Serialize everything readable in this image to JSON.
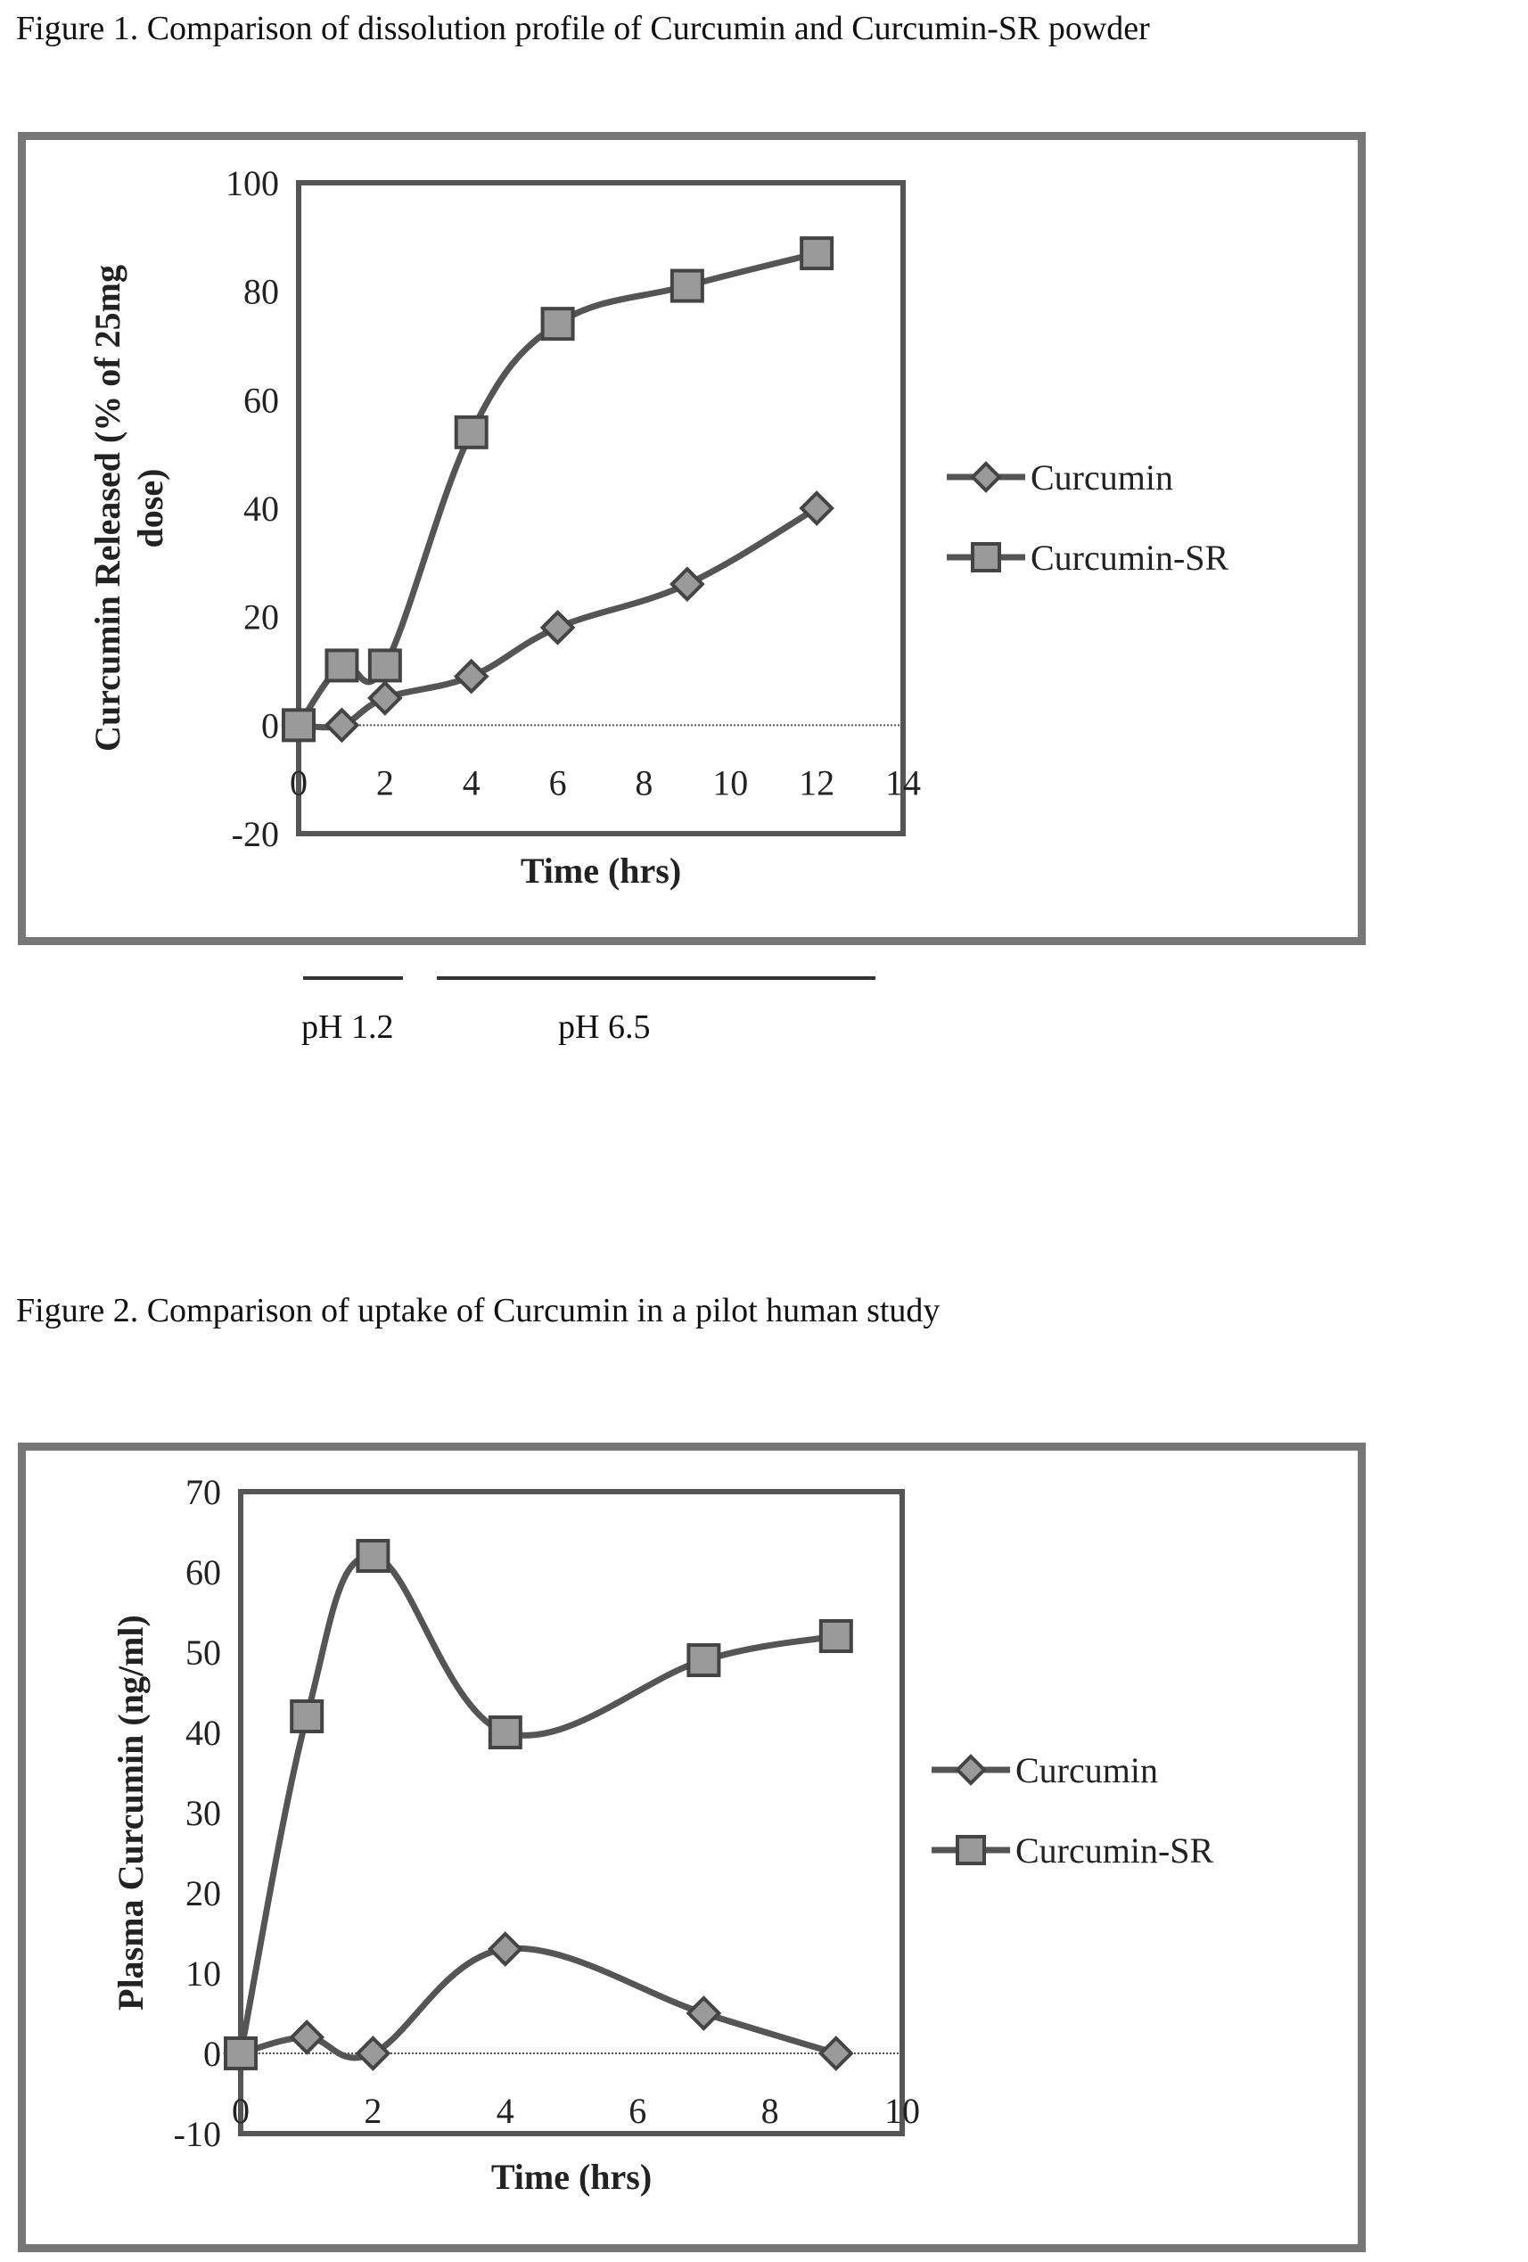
{
  "figures": [
    {
      "caption": "Figure 1. Comparison of dissolution profile of Curcumin and Curcumin-SR powder",
      "ph_labels": [
        "pH 1.2",
        "pH 6.5"
      ]
    },
    {
      "caption": "Figure 2.  Comparison of uptake of Curcumin in a pilot human study"
    }
  ],
  "chart_data": [
    {
      "type": "line",
      "title": "",
      "xlabel": "Time (hrs)",
      "ylabel": "Curcumin Released (% of 25mg dose)",
      "xlim": [
        0,
        14
      ],
      "ylim": [
        -20,
        100
      ],
      "xticks": [
        0,
        2,
        4,
        6,
        8,
        10,
        12,
        14
      ],
      "yticks": [
        -20,
        0,
        20,
        40,
        60,
        80,
        100
      ],
      "legend_position": "right",
      "series": [
        {
          "name": "Curcumin",
          "marker": "diamond",
          "x": [
            0,
            1,
            2,
            4,
            6,
            9,
            12
          ],
          "y": [
            0,
            0,
            5,
            9,
            18,
            26,
            40
          ]
        },
        {
          "name": "Curcumin-SR",
          "marker": "square",
          "x": [
            0,
            1,
            2,
            4,
            6,
            9,
            12
          ],
          "y": [
            0,
            11,
            11,
            54,
            74,
            81,
            87
          ]
        }
      ]
    },
    {
      "type": "line",
      "title": "",
      "xlabel": "Time (hrs)",
      "ylabel": "Plasma Curcumin (ng/ml)",
      "xlim": [
        0,
        10
      ],
      "ylim": [
        -10,
        70
      ],
      "xticks": [
        0,
        2,
        4,
        6,
        8,
        10
      ],
      "yticks": [
        -10,
        0,
        10,
        20,
        30,
        40,
        50,
        60,
        70
      ],
      "legend_position": "right",
      "series": [
        {
          "name": "Curcumin",
          "marker": "diamond",
          "x": [
            0,
            1,
            2,
            4,
            7,
            9
          ],
          "y": [
            0,
            2,
            0,
            13,
            5,
            0
          ]
        },
        {
          "name": "Curcumin-SR",
          "marker": "square",
          "x": [
            0,
            1,
            2,
            4,
            7,
            9
          ],
          "y": [
            0,
            42,
            62,
            40,
            49,
            52
          ]
        }
      ]
    }
  ],
  "colors": {
    "line": "#555555",
    "marker_fill": "#9a9a9a",
    "marker_stroke": "#444444",
    "frame": "#777777"
  }
}
